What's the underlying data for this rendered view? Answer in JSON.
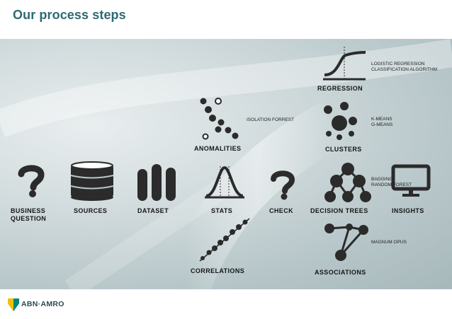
{
  "slide": {
    "title": "Our process steps"
  },
  "steps": {
    "business_question": {
      "line1": "BUSINESS",
      "line2": "QUESTION"
    },
    "sources": "SOURCES",
    "dataset": "DATASET",
    "stats": "STATS",
    "check": "CHECK",
    "decision_trees": "DECISION TREES",
    "insights": "INSIGHTS",
    "regression": "REGRESSION",
    "anomalities": "ANOMALITIES",
    "clusters": "CLUSTERS",
    "correlations": "CORRELATIONS",
    "associations": "ASSOCIATIONS"
  },
  "notes": {
    "regression": [
      "LOGISTIC REGRESSION",
      "CLASSIFICATION ALGORITHM"
    ],
    "anomalities": [
      "ISOLATION FORREST"
    ],
    "clusters": [
      "K-MEANS",
      "G-MEANS"
    ],
    "decision_trees": [
      "BAGGING",
      "RANDOM FOREST"
    ],
    "associations": [
      "MAGNUM OPUS"
    ]
  },
  "footer": {
    "brand": "ABN·AMRO"
  },
  "colors": {
    "title": "#2e6a70",
    "icon": "#2b2b2b",
    "logo_green": "#00857a",
    "logo_yellow": "#f3c000"
  }
}
